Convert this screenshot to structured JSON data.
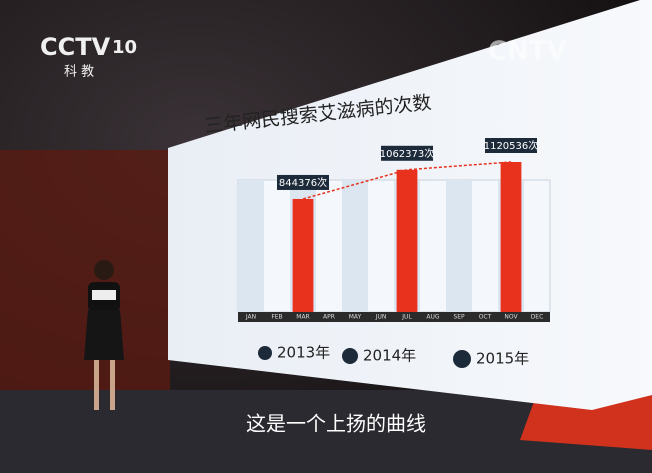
{
  "broadcast": {
    "logo": "CCTV",
    "channel": "10",
    "channel_name": "科 教",
    "watermark": "CNTV",
    "subtitle": "这是一个上扬的曲线"
  },
  "chart_data": {
    "type": "bar",
    "title": "三年网民搜索艾滋病的次数",
    "categories": [
      "JAN",
      "FEB",
      "MAR",
      "APR",
      "MAY",
      "JUN",
      "JUL",
      "AUG",
      "SEP",
      "OCT",
      "NOV",
      "DEC"
    ],
    "values": [
      null,
      null,
      844376,
      null,
      null,
      null,
      1062373,
      null,
      null,
      null,
      1120536,
      null
    ],
    "value_labels": [
      null,
      null,
      "844376次",
      null,
      null,
      null,
      "1062373次",
      null,
      null,
      null,
      "1120536次",
      null
    ],
    "color": "#e8321e",
    "trend_line": true,
    "legend": [
      "2013年",
      "2014年",
      "2015年"
    ]
  }
}
